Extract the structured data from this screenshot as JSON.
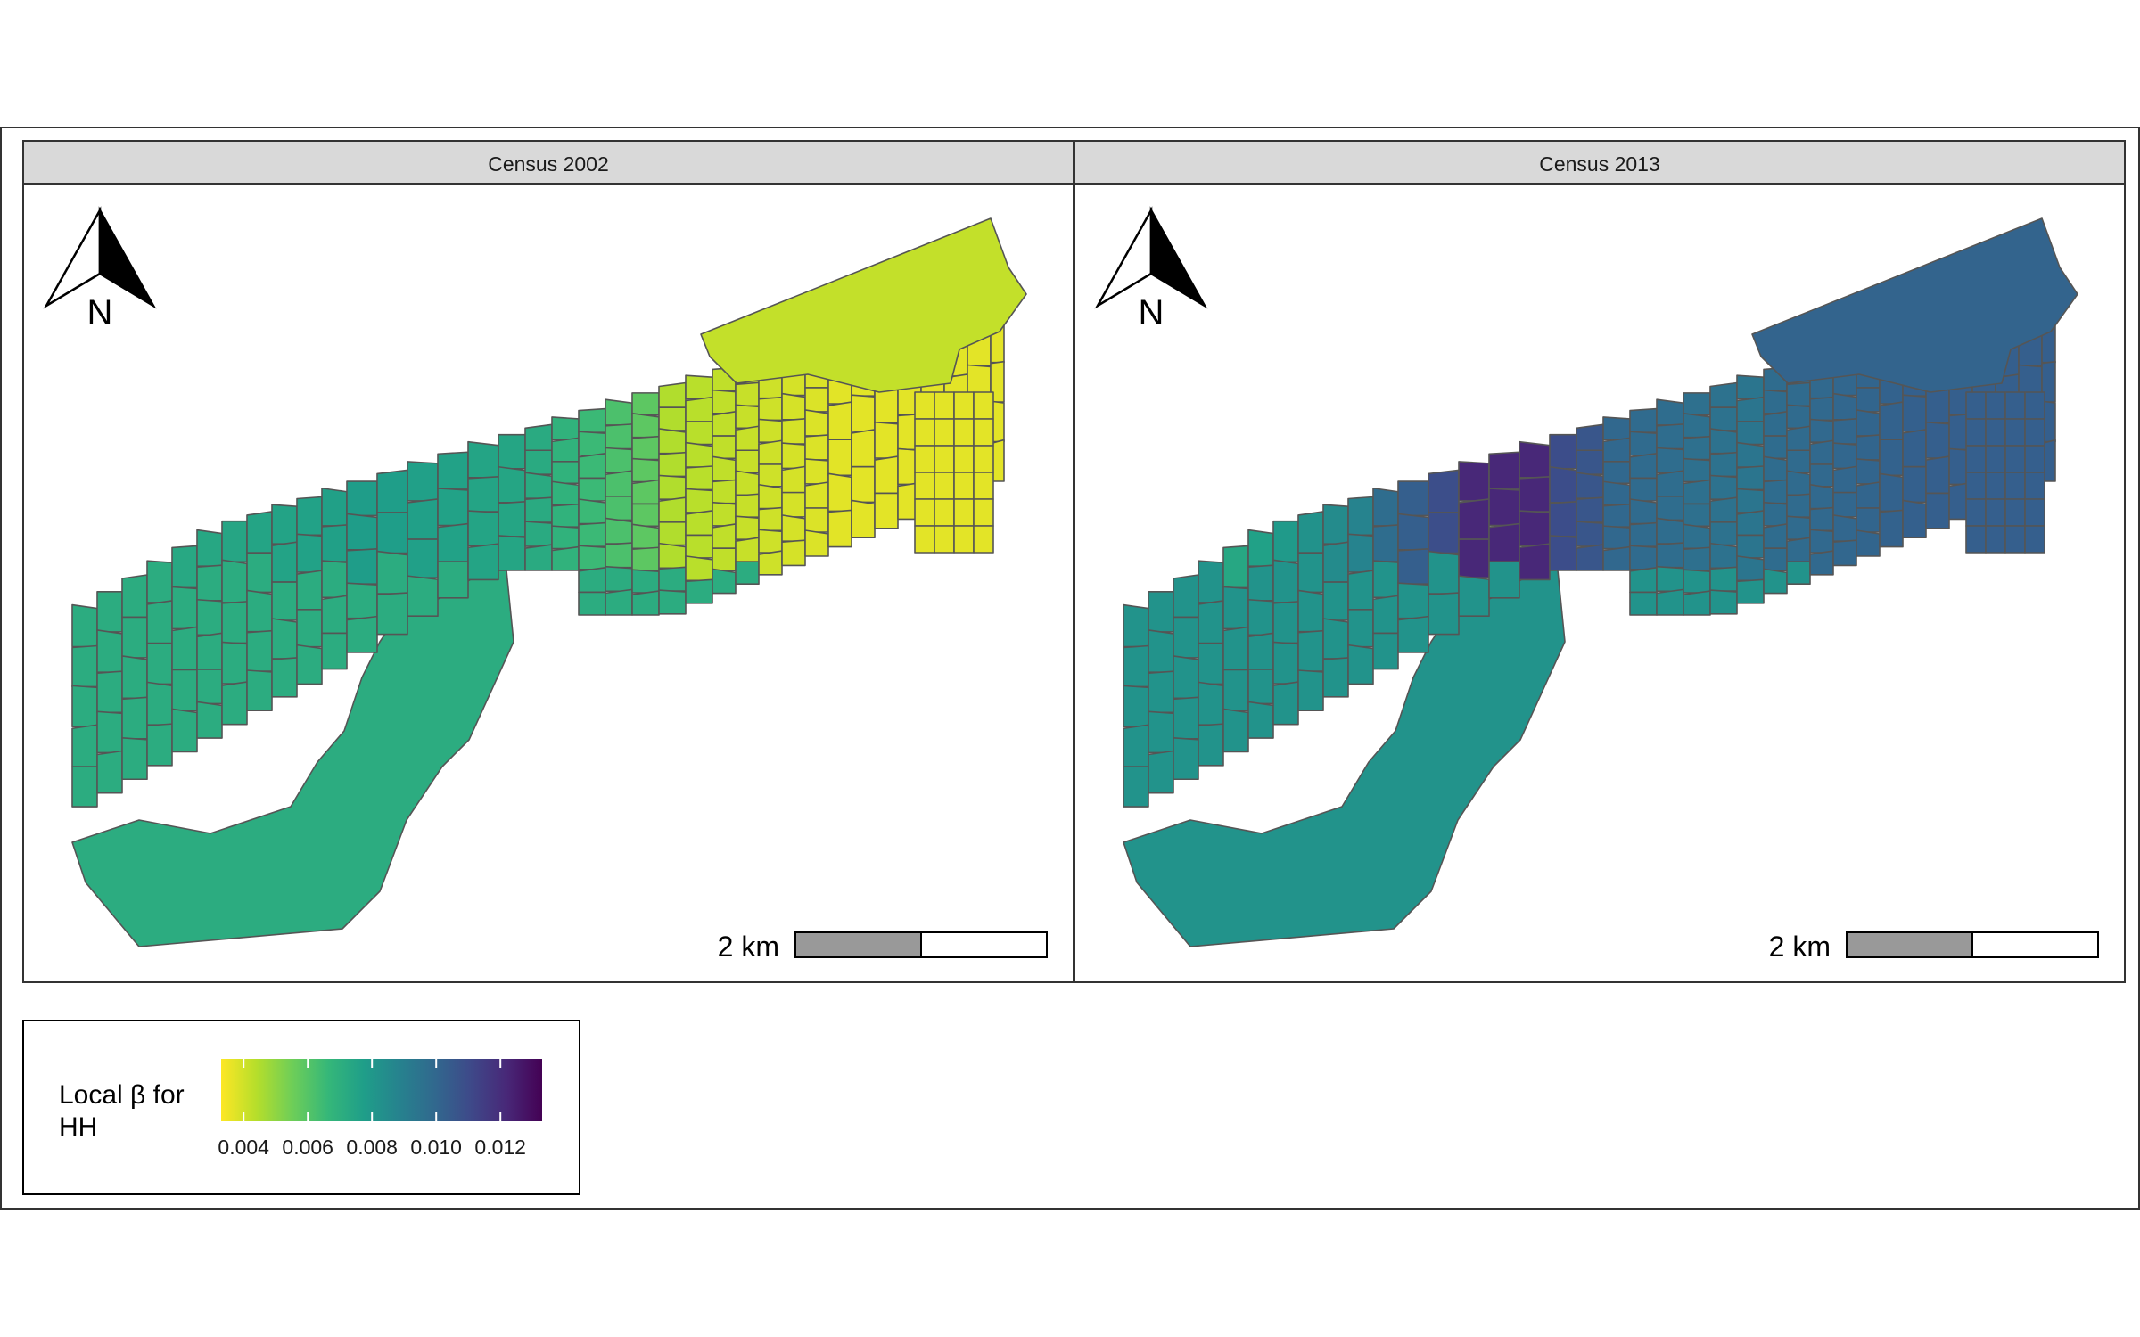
{
  "panels": [
    {
      "strip_label": "Census 2002",
      "north_label": "N",
      "scale_label": "2 km",
      "coloring": "2002"
    },
    {
      "strip_label": "Census 2013",
      "north_label": "N",
      "scale_label": "2 km",
      "coloring": "2013"
    }
  ],
  "legend": {
    "title_line1": "Local β for",
    "title_line2": "HH",
    "ticks": [
      "0.004",
      "0.006",
      "0.008",
      "0.010",
      "0.012"
    ],
    "tick_values": [
      0.004,
      0.006,
      0.008,
      0.01,
      0.012
    ],
    "range": [
      0.0033,
      0.0133
    ],
    "palette": [
      "#fde725",
      "#b5de2b",
      "#6ece58",
      "#35b779",
      "#1f9e89",
      "#26828e",
      "#31688e",
      "#3e4989",
      "#482878",
      "#440154"
    ]
  },
  "colors": {
    "strip_fill": "#d9d9d9",
    "border": "#333333",
    "region_stroke": "#555555",
    "scalebar_fill": "#999999"
  }
}
